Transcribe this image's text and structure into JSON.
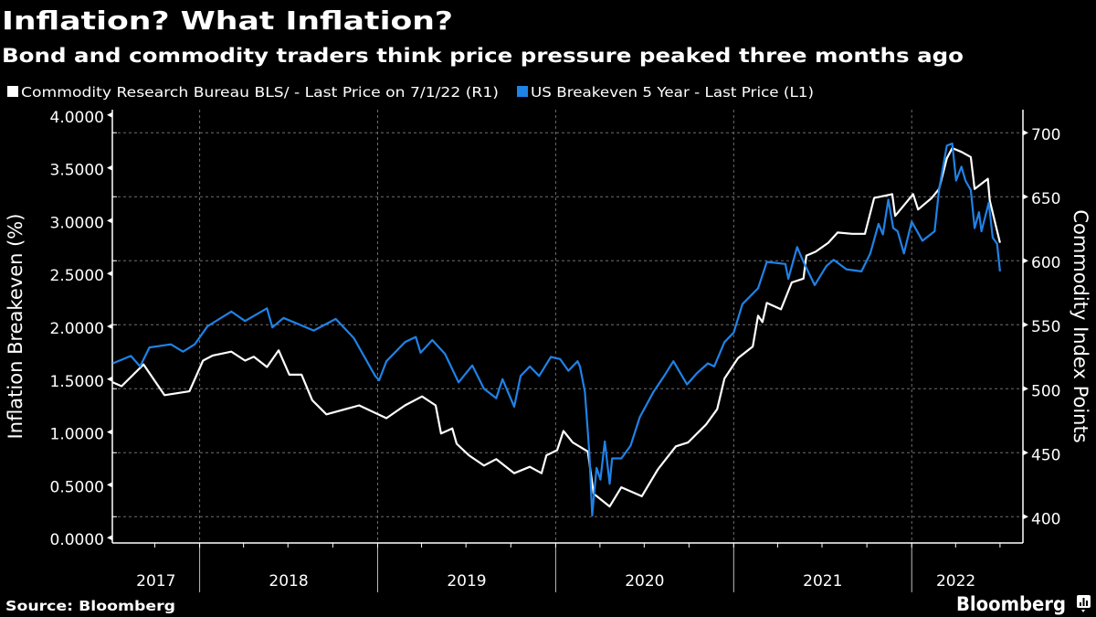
{
  "header": {
    "title": "Inflation? What Inflation?",
    "subtitle": "Bond and commodity traders think price pressure peaked three months ago"
  },
  "footer": {
    "source": "Source: Bloomberg",
    "brand": "Bloomberg",
    "brand_icon": "bloomberg-chart-icon"
  },
  "chart_data": {
    "type": "line",
    "xlim": [
      "2017-07-06",
      "2022-08-17"
    ],
    "x_tick_labels": [
      "2017",
      "2018",
      "2019",
      "2020",
      "2021",
      "2022"
    ],
    "year_boundaries": [
      "2018-01-01",
      "2019-01-01",
      "2020-01-01",
      "2021-01-01",
      "2022-01-01"
    ],
    "left_axis": {
      "label": "Inflation Breakeven (%)",
      "ylim": [
        -0.05,
        4.05
      ],
      "ticks": [
        0,
        0.5,
        1,
        1.5,
        2,
        2.5,
        3,
        3.5,
        4
      ],
      "tick_labels": [
        "0.0000",
        "0.5000",
        "1.0000",
        "1.5000",
        "2.0000",
        "2.5000",
        "3.0000",
        "3.5000",
        "4.0000"
      ]
    },
    "right_axis": {
      "label": "Commodity Index Points",
      "ylim": [
        379.5,
        718
      ],
      "ticks": [
        400,
        450,
        500,
        550,
        600,
        650,
        700
      ],
      "tick_labels": [
        "400",
        "450",
        "500",
        "550",
        "600",
        "650",
        "700"
      ]
    },
    "grid": true,
    "legend_placement": "top-left",
    "series": [
      {
        "name": "Commodity Research Bureau BLS/ - Last Price on 7/1/22 (R1)",
        "axis": "right",
        "color": "#ffffff",
        "points": [
          [
            "2017-07-07",
            505
          ],
          [
            "2017-07-25",
            502
          ],
          [
            "2017-09-08",
            519
          ],
          [
            "2017-10-21",
            495
          ],
          [
            "2017-12-11",
            498
          ],
          [
            "2018-01-08",
            522
          ],
          [
            "2018-01-28",
            526
          ],
          [
            "2018-03-07",
            529
          ],
          [
            "2018-04-04",
            522
          ],
          [
            "2018-04-22",
            525
          ],
          [
            "2018-05-19",
            517
          ],
          [
            "2018-06-12",
            530
          ],
          [
            "2018-07-04",
            511
          ],
          [
            "2018-07-29",
            511
          ],
          [
            "2018-08-20",
            491
          ],
          [
            "2018-09-18",
            480
          ],
          [
            "2018-11-24",
            487
          ],
          [
            "2019-01-19",
            477
          ],
          [
            "2019-02-26",
            487
          ],
          [
            "2019-04-02",
            494
          ],
          [
            "2019-04-30",
            487
          ],
          [
            "2019-05-11",
            465
          ],
          [
            "2019-06-03",
            469
          ],
          [
            "2019-06-12",
            457
          ],
          [
            "2019-07-07",
            448
          ],
          [
            "2019-08-07",
            440
          ],
          [
            "2019-09-01",
            445
          ],
          [
            "2019-10-08",
            434
          ],
          [
            "2019-11-09",
            439
          ],
          [
            "2019-12-03",
            434
          ],
          [
            "2019-12-13",
            448
          ],
          [
            "2020-01-04",
            452
          ],
          [
            "2020-01-17",
            467
          ],
          [
            "2020-02-05",
            458
          ],
          [
            "2020-03-07",
            451
          ],
          [
            "2020-03-19",
            418
          ],
          [
            "2020-04-21",
            408
          ],
          [
            "2020-05-15",
            423
          ],
          [
            "2020-06-26",
            416
          ],
          [
            "2020-07-29",
            437
          ],
          [
            "2020-09-04",
            455
          ],
          [
            "2020-09-29",
            458
          ],
          [
            "2020-11-05",
            472
          ],
          [
            "2020-11-28",
            484
          ],
          [
            "2020-12-13",
            508
          ],
          [
            "2021-01-10",
            524
          ],
          [
            "2021-02-09",
            533
          ],
          [
            "2021-02-20",
            557
          ],
          [
            "2021-03-01",
            552
          ],
          [
            "2021-03-10",
            567
          ],
          [
            "2021-04-08",
            562
          ],
          [
            "2021-04-30",
            583
          ],
          [
            "2021-05-24",
            586
          ],
          [
            "2021-05-30",
            604
          ],
          [
            "2021-06-18",
            607
          ],
          [
            "2021-07-14",
            614
          ],
          [
            "2021-08-02",
            622
          ],
          [
            "2021-09-01",
            621
          ],
          [
            "2021-09-27",
            621
          ],
          [
            "2021-10-16",
            649
          ],
          [
            "2021-11-22",
            652
          ],
          [
            "2021-11-28",
            635
          ],
          [
            "2022-01-04",
            652
          ],
          [
            "2022-01-14",
            640
          ],
          [
            "2022-02-11",
            649
          ],
          [
            "2022-02-26",
            656
          ],
          [
            "2022-03-14",
            680
          ],
          [
            "2022-03-25",
            688
          ],
          [
            "2022-04-13",
            685
          ],
          [
            "2022-05-02",
            681
          ],
          [
            "2022-05-10",
            656
          ],
          [
            "2022-06-06",
            664
          ],
          [
            "2022-06-10",
            647
          ],
          [
            "2022-06-22",
            628
          ],
          [
            "2022-07-01",
            614
          ]
        ]
      },
      {
        "name": "US Breakeven 5 Year - Last Price (L1)",
        "axis": "left",
        "color": "#1f82e6",
        "points": [
          [
            "2017-07-07",
            1.65
          ],
          [
            "2017-08-13",
            1.72
          ],
          [
            "2017-09-01",
            1.62
          ],
          [
            "2017-09-20",
            1.8
          ],
          [
            "2017-11-03",
            1.83
          ],
          [
            "2017-11-28",
            1.76
          ],
          [
            "2017-12-22",
            1.83
          ],
          [
            "2018-01-17",
            2.0
          ],
          [
            "2018-03-07",
            2.14
          ],
          [
            "2018-04-04",
            2.05
          ],
          [
            "2018-05-19",
            2.17
          ],
          [
            "2018-05-30",
            1.99
          ],
          [
            "2018-06-22",
            2.08
          ],
          [
            "2018-08-23",
            1.96
          ],
          [
            "2018-10-07",
            2.07
          ],
          [
            "2018-11-13",
            1.89
          ],
          [
            "2018-12-27",
            1.53
          ],
          [
            "2019-01-04",
            1.49
          ],
          [
            "2019-01-19",
            1.67
          ],
          [
            "2019-02-26",
            1.85
          ],
          [
            "2019-03-20",
            1.9
          ],
          [
            "2019-03-30",
            1.75
          ],
          [
            "2019-04-23",
            1.87
          ],
          [
            "2019-05-19",
            1.74
          ],
          [
            "2019-06-16",
            1.47
          ],
          [
            "2019-07-14",
            1.63
          ],
          [
            "2019-08-07",
            1.41
          ],
          [
            "2019-09-01",
            1.32
          ],
          [
            "2019-09-14",
            1.5
          ],
          [
            "2019-10-08",
            1.24
          ],
          [
            "2019-10-21",
            1.53
          ],
          [
            "2019-11-09",
            1.62
          ],
          [
            "2019-11-28",
            1.53
          ],
          [
            "2019-12-22",
            1.71
          ],
          [
            "2020-01-10",
            1.69
          ],
          [
            "2020-01-27",
            1.58
          ],
          [
            "2020-02-15",
            1.67
          ],
          [
            "2020-02-20",
            1.62
          ],
          [
            "2020-03-01",
            1.38
          ],
          [
            "2020-03-10",
            0.81
          ],
          [
            "2020-03-16",
            0.21
          ],
          [
            "2020-03-19",
            0.37
          ],
          [
            "2020-03-25",
            0.66
          ],
          [
            "2020-04-02",
            0.55
          ],
          [
            "2020-04-11",
            0.91
          ],
          [
            "2020-04-21",
            0.51
          ],
          [
            "2020-04-26",
            0.75
          ],
          [
            "2020-05-15",
            0.75
          ],
          [
            "2020-06-03",
            0.87
          ],
          [
            "2020-06-22",
            1.14
          ],
          [
            "2020-07-20",
            1.38
          ],
          [
            "2020-08-11",
            1.53
          ],
          [
            "2020-08-30",
            1.67
          ],
          [
            "2020-09-27",
            1.45
          ],
          [
            "2020-10-18",
            1.56
          ],
          [
            "2020-11-09",
            1.65
          ],
          [
            "2020-11-22",
            1.62
          ],
          [
            "2020-12-13",
            1.85
          ],
          [
            "2021-01-01",
            1.94
          ],
          [
            "2021-01-19",
            2.21
          ],
          [
            "2021-02-20",
            2.36
          ],
          [
            "2021-03-10",
            2.61
          ],
          [
            "2021-04-17",
            2.59
          ],
          [
            "2021-04-23",
            2.45
          ],
          [
            "2021-05-11",
            2.75
          ],
          [
            "2021-05-24",
            2.61
          ],
          [
            "2021-06-16",
            2.39
          ],
          [
            "2021-07-10",
            2.57
          ],
          [
            "2021-07-25",
            2.63
          ],
          [
            "2021-08-20",
            2.54
          ],
          [
            "2021-09-20",
            2.52
          ],
          [
            "2021-10-08",
            2.69
          ],
          [
            "2021-10-25",
            2.97
          ],
          [
            "2021-11-03",
            2.87
          ],
          [
            "2021-11-14",
            3.2
          ],
          [
            "2021-11-24",
            2.93
          ],
          [
            "2021-12-03",
            2.9
          ],
          [
            "2021-12-16",
            2.69
          ],
          [
            "2022-01-01",
            2.99
          ],
          [
            "2022-01-23",
            2.81
          ],
          [
            "2022-02-17",
            2.9
          ],
          [
            "2022-02-26",
            3.29
          ],
          [
            "2022-03-07",
            3.53
          ],
          [
            "2022-03-14",
            3.71
          ],
          [
            "2022-03-25",
            3.73
          ],
          [
            "2022-04-02",
            3.38
          ],
          [
            "2022-04-13",
            3.51
          ],
          [
            "2022-04-21",
            3.38
          ],
          [
            "2022-05-02",
            3.29
          ],
          [
            "2022-05-10",
            2.93
          ],
          [
            "2022-05-19",
            3.08
          ],
          [
            "2022-05-24",
            2.9
          ],
          [
            "2022-06-08",
            3.17
          ],
          [
            "2022-06-16",
            2.84
          ],
          [
            "2022-06-25",
            2.78
          ],
          [
            "2022-07-01",
            2.52
          ]
        ]
      }
    ]
  }
}
